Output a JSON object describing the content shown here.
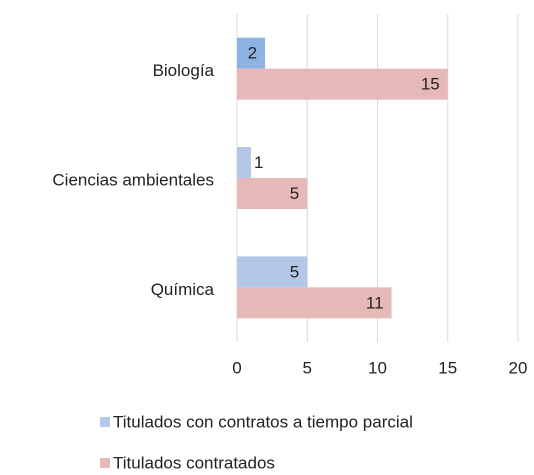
{
  "chart_data": {
    "type": "hbar",
    "categories": [
      "Biología",
      "Ciencias ambientales",
      "Química"
    ],
    "series": [
      {
        "name": "Titulados con contratos a tiempo parcial",
        "color": "#b4c7e7",
        "colors": [
          "#8db3e2",
          "#b4c7e7",
          "#b4c7e7"
        ],
        "values": [
          2,
          1,
          5
        ]
      },
      {
        "name": "Titulados contratados",
        "color": "#e6b9b8",
        "values": [
          15,
          5,
          11
        ]
      }
    ],
    "xlim": [
      0,
      20
    ],
    "xticks": [
      0,
      5,
      10,
      15,
      20
    ],
    "grid": true,
    "legend": "bottom"
  }
}
